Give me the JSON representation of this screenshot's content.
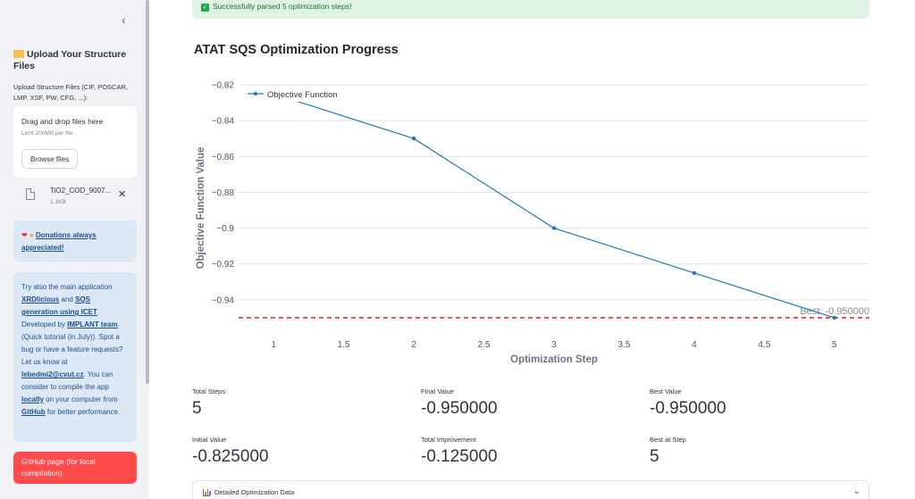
{
  "sidebar": {
    "upload_title": "Upload Your Structure Files",
    "upload_label": "Upload Structure Files (CIF, POSCAR, LMP, XSF, PW, CFG, ...):",
    "dropzone_title": "Drag and drop files here",
    "dropzone_limit": "Limit 200MB per file",
    "browse_label": "Browse files",
    "file_name": "TiO2_COD_9007...",
    "file_size": "1.1KB",
    "donations_link": "Donations always appreciated!",
    "info": {
      "t1": "Try also the main application",
      "l_xrd": "XRDlicious",
      "t2": "and",
      "l_sqs": "SQS generation using ICET",
      "t3": ". Developed by",
      "l_implant": "IMPLANT team",
      "t4": ". (Quick tutorial (in July)). Spot a bug or have a feature requests? Let us know at",
      "l_email": "lebedmi2@cvut.cz",
      "t5": ". You can consider to compile the app",
      "l_locally": "locally",
      "t6": "on your computer from",
      "l_github": "GitHub",
      "t7": "for better performance."
    },
    "github_button": "GitHub page (for local compilation)"
  },
  "main": {
    "success_message": "Successfully parsed 5 optimization steps!",
    "chart_title": "ATAT SQS Optimization Progress",
    "expander_label": "Detailed Optimization Data"
  },
  "metrics": [
    {
      "label": "Total Steps",
      "value": "5"
    },
    {
      "label": "Final Value",
      "value": "-0.950000"
    },
    {
      "label": "Best Value",
      "value": "-0.950000"
    },
    {
      "label": "Initial Value",
      "value": "-0.825000"
    },
    {
      "label": "Total Improvement",
      "value": "-0.125000"
    },
    {
      "label": "Best at Step",
      "value": "5"
    }
  ],
  "chart_data": {
    "type": "line",
    "xlabel": "Optimization Step",
    "ylabel": "Objective Function Value",
    "series": [
      {
        "name": "Objective Function",
        "x": [
          1,
          2,
          3,
          4,
          5
        ],
        "y": [
          -0.825,
          -0.85,
          -0.9,
          -0.925,
          -0.95
        ]
      }
    ],
    "xlim": [
      0.75,
      5.25
    ],
    "ylim": [
      -0.955,
      -0.82
    ],
    "xticks": [
      1,
      1.5,
      2,
      2.5,
      3,
      3.5,
      4,
      4.5,
      5
    ],
    "xtick_labels": [
      "1",
      "1.5",
      "2",
      "2.5",
      "3",
      "3.5",
      "4",
      "4.5",
      "5"
    ],
    "yticks": [
      -0.82,
      -0.84,
      -0.86,
      -0.88,
      -0.9,
      -0.92,
      -0.94
    ],
    "ytick_labels": [
      "−0.82",
      "−0.84",
      "−0.86",
      "−0.88",
      "−0.9",
      "−0.92",
      "−0.94"
    ],
    "reference_line": {
      "y": -0.95,
      "label": "Best: -0.950000",
      "color": "#ff0000"
    },
    "line_color": "#1f77b4",
    "grid": true,
    "legend": "top-left"
  }
}
